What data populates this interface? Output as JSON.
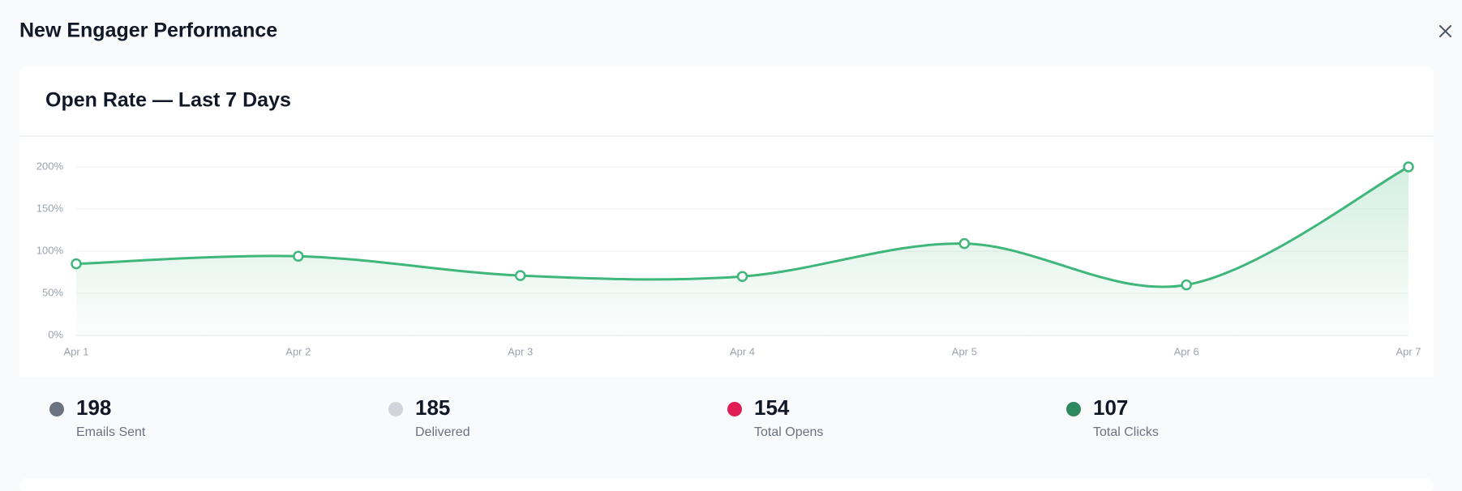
{
  "header": {
    "title": "New Engager Performance"
  },
  "chart_data": {
    "type": "line",
    "title": "Open Rate — Last 7 Days",
    "categories": [
      "Apr 1",
      "Apr 2",
      "Apr 3",
      "Apr 4",
      "Apr 5",
      "Apr 6",
      "Apr 7"
    ],
    "series": [
      {
        "name": "Open Rate",
        "color": "#3fb67a",
        "values": [
          85,
          94,
          71,
          70,
          109,
          60,
          200
        ]
      }
    ],
    "ylim": [
      0,
      200
    ],
    "yticks": [
      {
        "value": 0,
        "label": "0%"
      },
      {
        "value": 50,
        "label": "50%"
      },
      {
        "value": 100,
        "label": "100%"
      },
      {
        "value": 150,
        "label": "150%"
      },
      {
        "value": 200,
        "label": "200%"
      }
    ],
    "grid": true
  },
  "stats": [
    {
      "value": 198,
      "label": "Emails Sent",
      "color": "#6b7280"
    },
    {
      "value": 185,
      "label": "Delivered",
      "color": "#d1d5db"
    },
    {
      "value": 154,
      "label": "Total Opens",
      "color": "#e11d55"
    },
    {
      "value": 107,
      "label": "Total Clicks",
      "color": "#2e8a5e"
    }
  ]
}
